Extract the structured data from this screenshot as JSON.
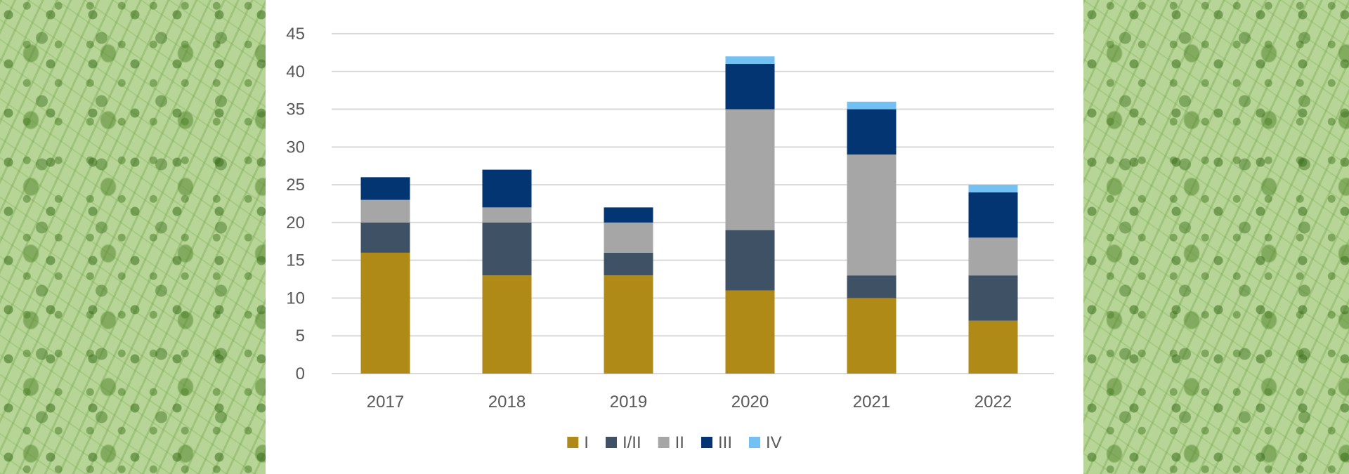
{
  "chart_data": {
    "type": "bar",
    "stacked": true,
    "categories": [
      "2017",
      "2018",
      "2019",
      "2020",
      "2021",
      "2022"
    ],
    "series": [
      {
        "name": "I",
        "color": "#b08a17",
        "values": [
          16,
          13,
          13,
          11,
          10,
          7
        ]
      },
      {
        "name": "I/II",
        "color": "#3f5164",
        "values": [
          4,
          7,
          3,
          8,
          3,
          6
        ]
      },
      {
        "name": "II",
        "color": "#a6a6a6",
        "values": [
          3,
          2,
          4,
          16,
          16,
          5
        ]
      },
      {
        "name": "III",
        "color": "#033572",
        "values": [
          3,
          5,
          2,
          6,
          6,
          6
        ]
      },
      {
        "name": "IV",
        "color": "#72c1f2",
        "values": [
          0,
          0,
          0,
          1,
          1,
          1
        ]
      }
    ],
    "y_ticks": [
      "0",
      "5",
      "10",
      "15",
      "20",
      "25",
      "30",
      "35",
      "40",
      "45"
    ],
    "ylim": [
      0,
      45
    ],
    "grid": true,
    "legend": "bottom"
  }
}
